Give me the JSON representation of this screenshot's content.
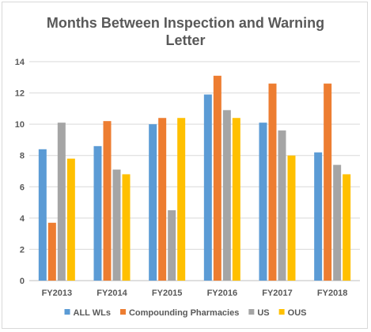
{
  "chart_data": {
    "type": "bar",
    "title_lines": [
      "Months Between Inspection and Warning",
      "Letter"
    ],
    "xlabel": "",
    "ylabel": "",
    "ylim": [
      0,
      14
    ],
    "yticks": [
      "0",
      "2",
      "4",
      "6",
      "8",
      "10",
      "12",
      "14"
    ],
    "grid": true,
    "legend_position": "bottom",
    "categories": [
      "FY2013",
      "FY2014",
      "FY2015",
      "FY2016",
      "FY2017",
      "FY2018"
    ],
    "series": [
      {
        "name": "ALL WLs",
        "color": "#5b9bd5",
        "values": [
          8.4,
          8.6,
          10.0,
          11.9,
          10.1,
          8.2
        ]
      },
      {
        "name": "Compounding Pharmacies",
        "color": "#ed7d31",
        "values": [
          3.7,
          10.2,
          10.4,
          13.1,
          12.6,
          12.6
        ]
      },
      {
        "name": "US",
        "color": "#a5a5a5",
        "values": [
          10.1,
          7.1,
          4.5,
          10.9,
          9.6,
          7.4
        ]
      },
      {
        "name": "OUS",
        "color": "#ffc000",
        "values": [
          7.8,
          6.8,
          10.4,
          10.4,
          8.0,
          6.8
        ]
      }
    ]
  }
}
